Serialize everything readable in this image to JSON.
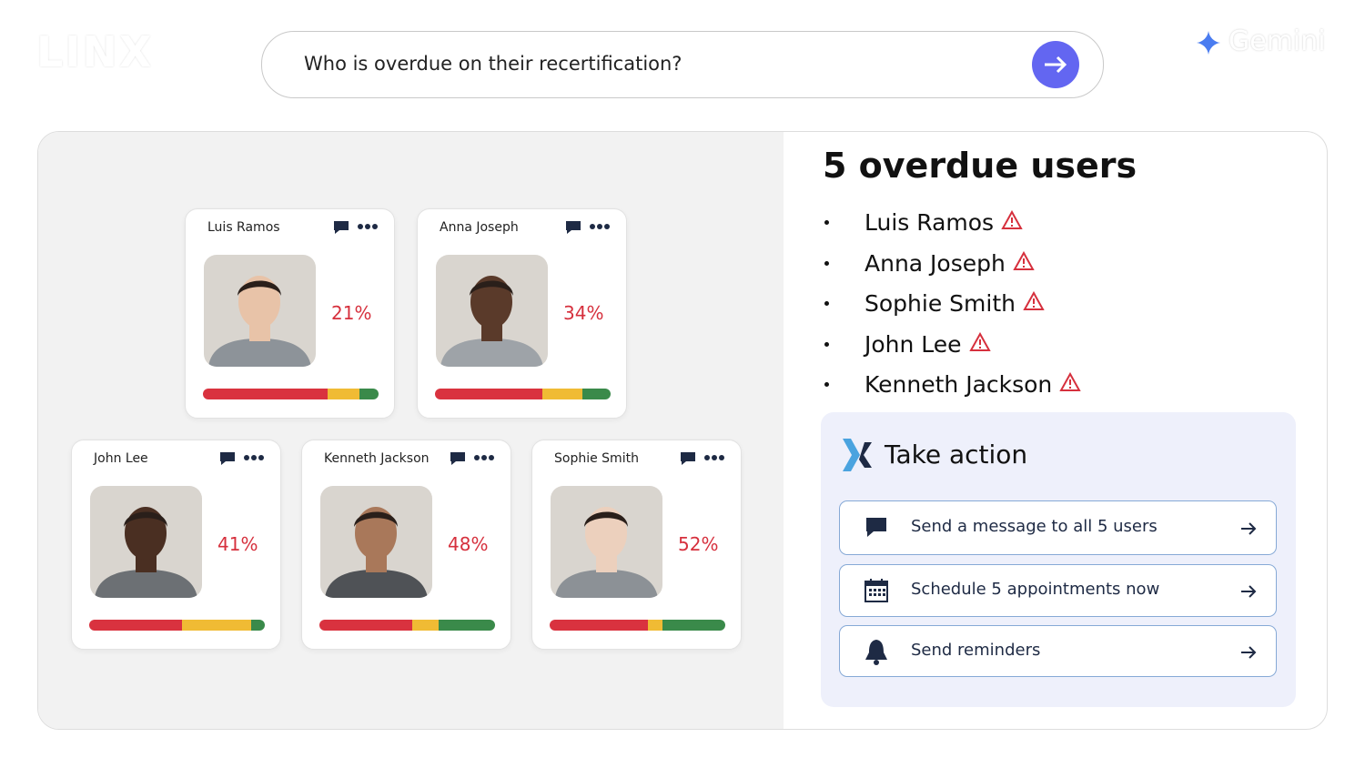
{
  "header": {
    "logo": "LINX",
    "query": "Who is overdue on their recertification?",
    "brand": "Gemini"
  },
  "cards": [
    {
      "name": "Luis Ramos",
      "percent": "21%",
      "bar": [
        71,
        18,
        11
      ]
    },
    {
      "name": "Anna Joseph",
      "percent": "34%",
      "bar": [
        61,
        23,
        16
      ]
    },
    {
      "name": "John Lee",
      "percent": "41%",
      "bar": [
        53,
        39,
        8
      ]
    },
    {
      "name": "Kenneth Jackson",
      "percent": "48%",
      "bar": [
        53,
        15,
        32
      ]
    },
    {
      "name": "Sophie Smith",
      "percent": "52%",
      "bar": [
        56,
        8,
        36
      ]
    }
  ],
  "summary": {
    "title": "5 overdue users",
    "users": [
      "Luis Ramos",
      "Anna Joseph",
      "Sophie Smith",
      "John Lee",
      "Kenneth Jackson"
    ]
  },
  "actions": {
    "title": "Take action",
    "items": [
      "Send a message to all 5 users",
      "Schedule 5 appointments now",
      "Send reminders"
    ]
  }
}
